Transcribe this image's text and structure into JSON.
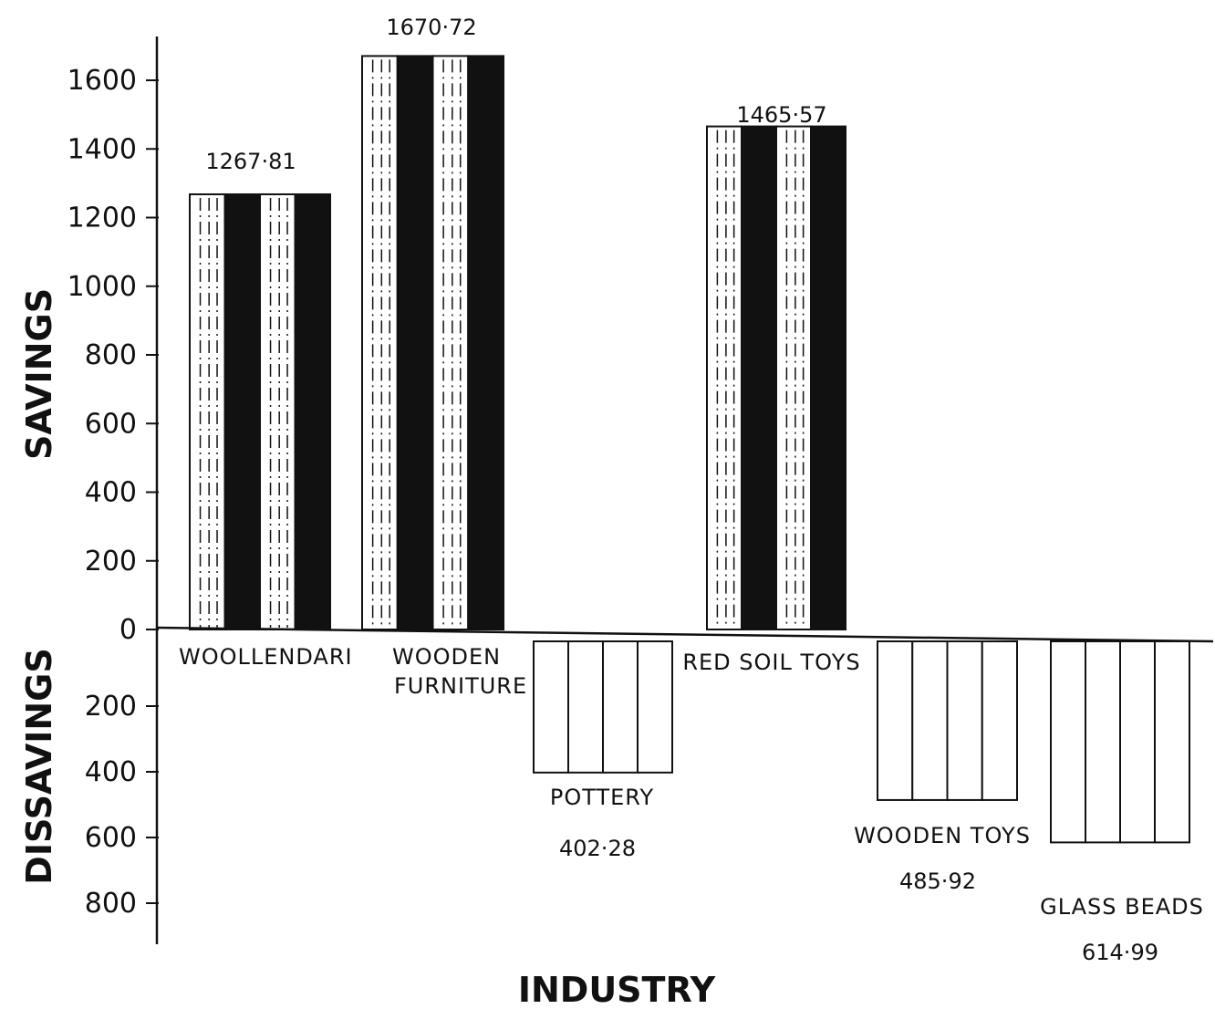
{
  "chart_data": {
    "type": "bar",
    "title": "",
    "xlabel": "INDUSTRY",
    "ylabel_positive": "SAVINGS",
    "ylabel_negative": "DISSAVINGS",
    "ylim": [
      -800,
      1600
    ],
    "yticks_positive": [
      "1600",
      "1400",
      "1200",
      "1000",
      "800",
      "600",
      "400",
      "200",
      "0"
    ],
    "yticks_negative": [
      "200",
      "400",
      "600",
      "800"
    ],
    "categories": [
      "WOOLLENDARI",
      "WOODEN FURNITURE",
      "POTTERY",
      "RED SOIL TOYS",
      "WOODEN TOYS",
      "GLASS BEADS"
    ],
    "values": [
      1267.81,
      1670.72,
      -402.28,
      1465.57,
      -485.92,
      -614.99
    ],
    "value_labels": [
      "1267·81",
      "1670·72",
      "402·28",
      "1465·57",
      "485·92",
      "614·99"
    ],
    "grid": false,
    "legend": "none",
    "colors": {
      "dark": "#111111",
      "light": "#ffffff",
      "line": "#111111"
    }
  }
}
